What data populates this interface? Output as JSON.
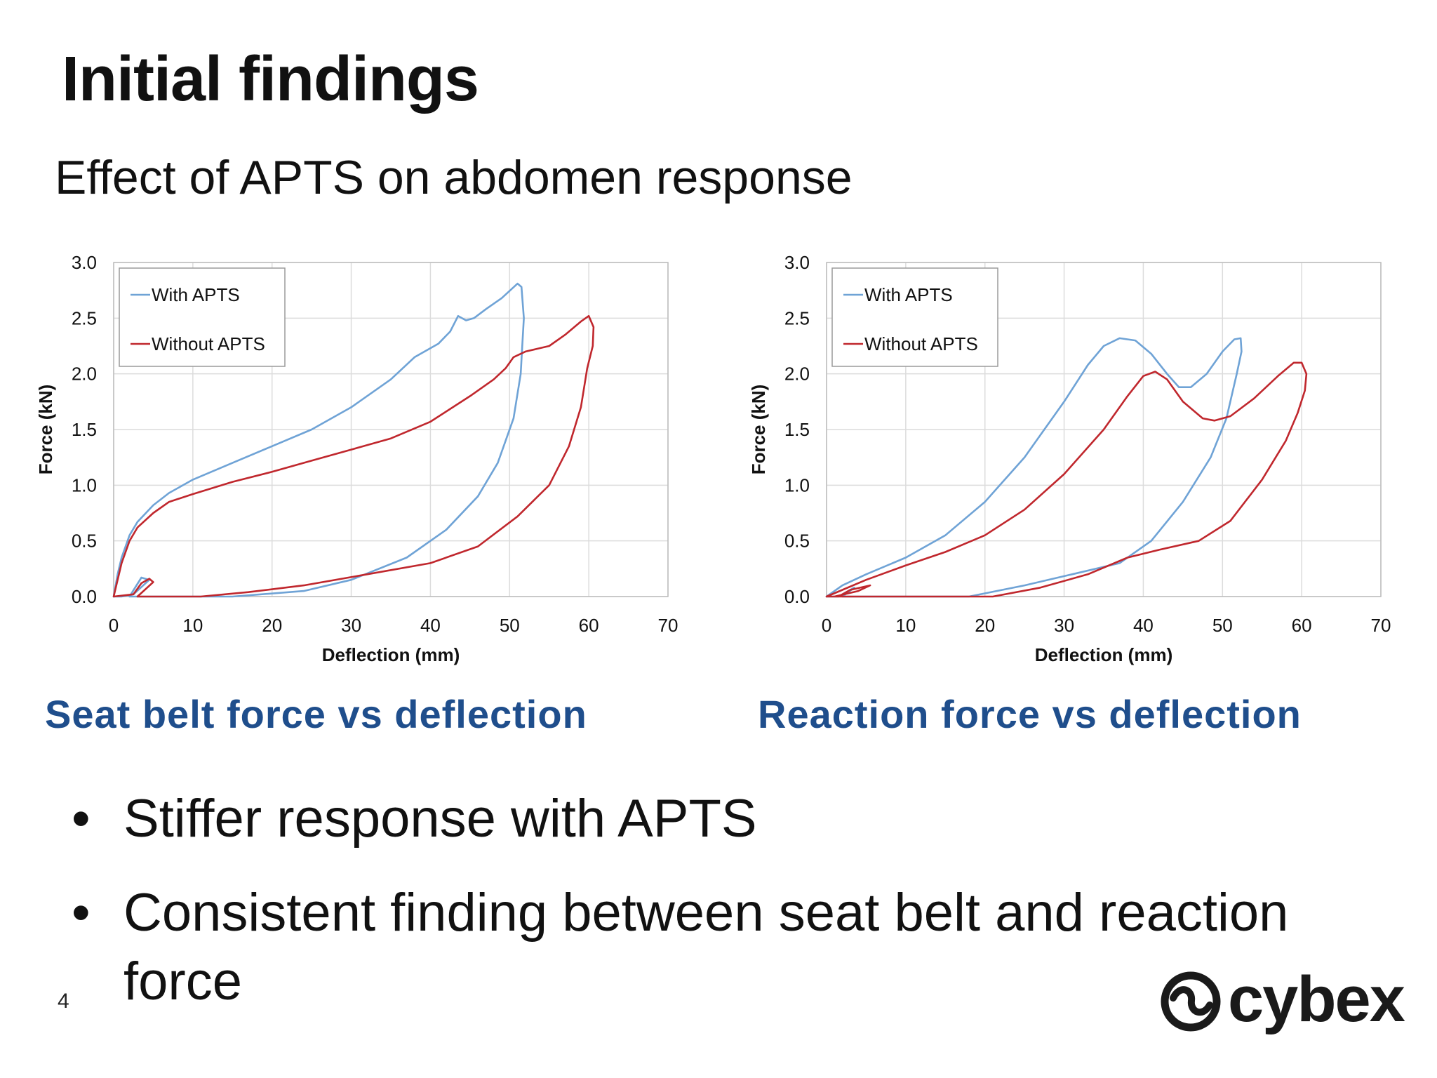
{
  "title": "Initial findings",
  "subtitle": "Effect of APTS on abdomen response",
  "colors": {
    "with_apts": "#6fa3d6",
    "without_apts": "#c0272d",
    "caption": "#1f4e8c"
  },
  "captions": {
    "left": "Seat belt force vs deflection",
    "right": "Reaction force vs deflection"
  },
  "bullets": [
    "Stiffer response with APTS",
    "Consistent finding between seat belt and reaction force"
  ],
  "page_number": "4",
  "logo": {
    "text": "cybex",
    "icon": "cybex-logo-icon"
  },
  "chart_data": [
    {
      "type": "line",
      "title": "Seat belt force vs deflection",
      "xlabel": "Deflection (mm)",
      "ylabel": "Force (kN)",
      "xlim": [
        0,
        70
      ],
      "ylim": [
        0,
        3
      ],
      "x_ticks": [
        "0",
        "10",
        "20",
        "30",
        "40",
        "50",
        "60",
        "70"
      ],
      "y_ticks": [
        "0.0",
        "0.5",
        "1.0",
        "1.5",
        "2.0",
        "2.5",
        "3.0"
      ],
      "grid": true,
      "legend": "top-left",
      "series": [
        {
          "name": "With APTS",
          "points": [
            [
              0,
              0
            ],
            [
              0.5,
              0.2
            ],
            [
              1,
              0.35
            ],
            [
              2,
              0.55
            ],
            [
              3,
              0.67
            ],
            [
              5,
              0.82
            ],
            [
              7,
              0.93
            ],
            [
              10,
              1.05
            ],
            [
              15,
              1.2
            ],
            [
              20,
              1.35
            ],
            [
              25,
              1.5
            ],
            [
              30,
              1.7
            ],
            [
              35,
              1.95
            ],
            [
              38,
              2.15
            ],
            [
              41,
              2.27
            ],
            [
              42.5,
              2.38
            ],
            [
              43.5,
              2.52
            ],
            [
              44.5,
              2.48
            ],
            [
              45.5,
              2.5
            ],
            [
              47,
              2.58
            ],
            [
              49,
              2.68
            ],
            [
              51,
              2.81
            ],
            [
              51.5,
              2.78
            ],
            [
              51.8,
              2.5
            ],
            [
              51.6,
              2.25
            ],
            [
              51.4,
              2.0
            ],
            [
              50.5,
              1.6
            ],
            [
              48.5,
              1.2
            ],
            [
              46,
              0.9
            ],
            [
              42,
              0.6
            ],
            [
              37,
              0.35
            ],
            [
              30,
              0.15
            ],
            [
              24,
              0.05
            ],
            [
              15,
              0
            ],
            [
              2,
              0
            ],
            [
              3.5,
              0.17
            ],
            [
              4.5,
              0.15
            ],
            [
              2.5,
              0.02
            ],
            [
              1,
              0
            ],
            [
              0,
              0
            ]
          ]
        },
        {
          "name": "Without APTS",
          "points": [
            [
              0,
              0
            ],
            [
              1,
              0.3
            ],
            [
              2,
              0.5
            ],
            [
              3,
              0.62
            ],
            [
              5,
              0.75
            ],
            [
              7,
              0.85
            ],
            [
              10,
              0.92
            ],
            [
              15,
              1.03
            ],
            [
              20,
              1.12
            ],
            [
              25,
              1.22
            ],
            [
              30,
              1.32
            ],
            [
              35,
              1.42
            ],
            [
              40,
              1.57
            ],
            [
              45,
              1.8
            ],
            [
              48,
              1.95
            ],
            [
              49.5,
              2.05
            ],
            [
              50.5,
              2.15
            ],
            [
              52,
              2.2
            ],
            [
              55,
              2.25
            ],
            [
              57,
              2.35
            ],
            [
              59,
              2.47
            ],
            [
              60,
              2.52
            ],
            [
              60.6,
              2.42
            ],
            [
              60.5,
              2.25
            ],
            [
              59.8,
              2.05
            ],
            [
              59,
              1.7
            ],
            [
              57.5,
              1.35
            ],
            [
              55,
              1.0
            ],
            [
              51,
              0.72
            ],
            [
              46,
              0.45
            ],
            [
              40,
              0.3
            ],
            [
              32,
              0.2
            ],
            [
              24,
              0.1
            ],
            [
              17,
              0.04
            ],
            [
              11,
              0
            ],
            [
              3,
              0
            ],
            [
              5,
              0.13
            ],
            [
              4.5,
              0.16
            ],
            [
              3.5,
              0.12
            ],
            [
              2.5,
              0.02
            ],
            [
              0,
              0
            ]
          ]
        }
      ]
    },
    {
      "type": "line",
      "title": "Reaction force vs deflection",
      "xlabel": "Deflection (mm)",
      "ylabel": "Force (kN)",
      "xlim": [
        0,
        70
      ],
      "ylim": [
        0,
        3
      ],
      "x_ticks": [
        "0",
        "10",
        "20",
        "30",
        "40",
        "50",
        "60",
        "70"
      ],
      "y_ticks": [
        "0.0",
        "0.5",
        "1.0",
        "1.5",
        "2.0",
        "2.5",
        "3.0"
      ],
      "grid": true,
      "legend": "top-left",
      "series": [
        {
          "name": "With APTS",
          "points": [
            [
              0,
              0
            ],
            [
              1,
              0.05
            ],
            [
              2,
              0.1
            ],
            [
              5,
              0.2
            ],
            [
              10,
              0.35
            ],
            [
              15,
              0.55
            ],
            [
              20,
              0.85
            ],
            [
              25,
              1.25
            ],
            [
              30,
              1.75
            ],
            [
              33,
              2.08
            ],
            [
              35,
              2.25
            ],
            [
              37,
              2.32
            ],
            [
              39,
              2.3
            ],
            [
              41,
              2.18
            ],
            [
              43,
              2.0
            ],
            [
              44.5,
              1.88
            ],
            [
              46,
              1.88
            ],
            [
              48,
              2.0
            ],
            [
              50,
              2.2
            ],
            [
              51.5,
              2.31
            ],
            [
              52.3,
              2.32
            ],
            [
              52.4,
              2.2
            ],
            [
              51.8,
              2.0
            ],
            [
              50.5,
              1.6
            ],
            [
              48.5,
              1.25
            ],
            [
              45,
              0.85
            ],
            [
              41,
              0.5
            ],
            [
              37,
              0.3
            ],
            [
              31,
              0.2
            ],
            [
              25,
              0.1
            ],
            [
              18,
              0
            ],
            [
              2,
              0
            ],
            [
              3.5,
              0.08
            ],
            [
              1.5,
              0
            ],
            [
              0,
              0
            ]
          ]
        },
        {
          "name": "Without APTS",
          "points": [
            [
              0,
              0
            ],
            [
              2,
              0.06
            ],
            [
              5,
              0.15
            ],
            [
              10,
              0.28
            ],
            [
              15,
              0.4
            ],
            [
              20,
              0.55
            ],
            [
              25,
              0.78
            ],
            [
              30,
              1.1
            ],
            [
              35,
              1.5
            ],
            [
              38,
              1.8
            ],
            [
              40,
              1.98
            ],
            [
              41.5,
              2.02
            ],
            [
              43,
              1.95
            ],
            [
              45,
              1.75
            ],
            [
              47.5,
              1.6
            ],
            [
              49,
              1.58
            ],
            [
              51,
              1.62
            ],
            [
              54,
              1.78
            ],
            [
              57,
              1.98
            ],
            [
              59,
              2.1
            ],
            [
              60,
              2.1
            ],
            [
              60.6,
              2.0
            ],
            [
              60.4,
              1.85
            ],
            [
              59.5,
              1.65
            ],
            [
              58,
              1.4
            ],
            [
              55,
              1.05
            ],
            [
              51,
              0.68
            ],
            [
              47,
              0.5
            ],
            [
              42,
              0.42
            ],
            [
              38,
              0.35
            ],
            [
              33,
              0.2
            ],
            [
              27,
              0.08
            ],
            [
              21,
              0
            ],
            [
              1,
              0
            ],
            [
              4,
              0.05
            ],
            [
              5.5,
              0.1
            ],
            [
              3,
              0.06
            ],
            [
              1.5,
              0
            ],
            [
              0,
              0
            ]
          ]
        }
      ]
    }
  ]
}
